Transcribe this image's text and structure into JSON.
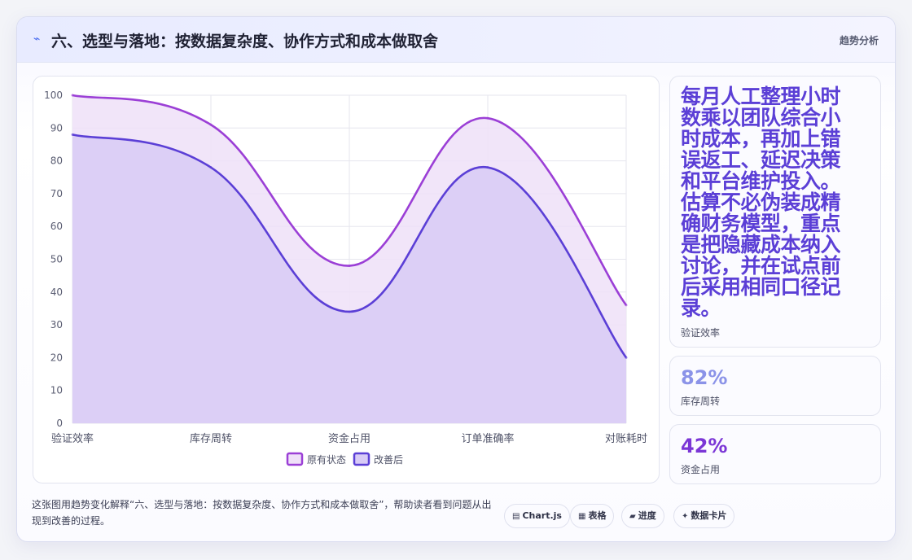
{
  "header": {
    "icon": "trend-icon",
    "title": "六、选型与落地：按数据复杂度、协作方式和成本做取舍",
    "link_label": "趋势分析"
  },
  "chart_data": {
    "type": "area",
    "categories": [
      "验证效率",
      "库存周转",
      "资金占用",
      "订单准确率",
      "对账耗时"
    ],
    "series": [
      {
        "name": "原有状态",
        "values": [
          100,
          91,
          48,
          93,
          36
        ],
        "color": "#9b3fd6",
        "fill": "#efe0f8"
      },
      {
        "name": "改善后",
        "values": [
          88,
          78,
          34,
          78,
          20
        ],
        "color": "#5b3fd6",
        "fill": "#d8cbf6"
      }
    ],
    "ylim": [
      0,
      100
    ],
    "yticks": [
      0,
      10,
      20,
      30,
      40,
      50,
      60,
      70,
      80,
      90,
      100
    ],
    "grid": true,
    "legend": "bottom"
  },
  "stats": [
    {
      "value": "每月人工整理小时数乘以团队综合小时成本，再加上错误返工、延迟决策和平台维护投入。估算不必伪装成精确财务模型，重点是把隐藏成本纳入讨论，并在试点前后采用相同口径记录。",
      "label": "验证效率"
    },
    {
      "value": "82%",
      "label": "库存周转"
    },
    {
      "value": "42%",
      "label": "资金占用"
    }
  ],
  "footer": {
    "description": "这张图用趋势变化解释“六、选型与落地：按数据复杂度、协作方式和成本做取舍”，帮助读者看到问题从出现到改善的过程。",
    "chips": [
      {
        "icon": "▤",
        "label": "Chart.js"
      },
      {
        "icon": "▦",
        "label": "表格"
      },
      {
        "icon": "▰",
        "label": "进度"
      },
      {
        "icon": "✦",
        "label": "数据卡片"
      }
    ]
  }
}
